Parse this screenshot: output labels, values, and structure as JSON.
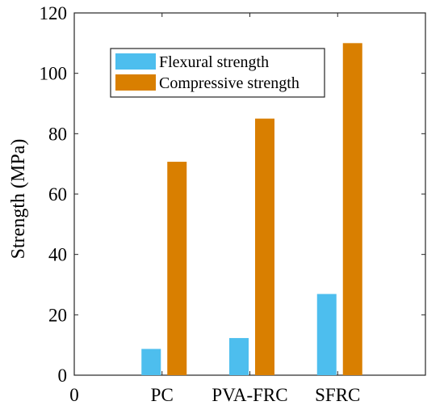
{
  "chart_data": {
    "type": "bar",
    "title": "",
    "xlabel": "",
    "ylabel": "Strength (MPa)",
    "categories": [
      "PC",
      "PVA-FRC",
      "SFRC"
    ],
    "x_ticks": [
      "0",
      "PC",
      "PVA-FRC",
      "SFRC"
    ],
    "ylim": [
      0,
      120
    ],
    "yticks": [
      0,
      20,
      40,
      60,
      80,
      100,
      120
    ],
    "series": [
      {
        "name": "Flexural strength",
        "values": [
          8.7,
          12.3,
          26.9
        ],
        "color": "#4DBEEE"
      },
      {
        "name": "Compressive strength",
        "values": [
          70.7,
          85.0,
          110.0
        ],
        "color": "#D97F00"
      }
    ],
    "legend_position": "top-left (inside)",
    "grid": false
  }
}
